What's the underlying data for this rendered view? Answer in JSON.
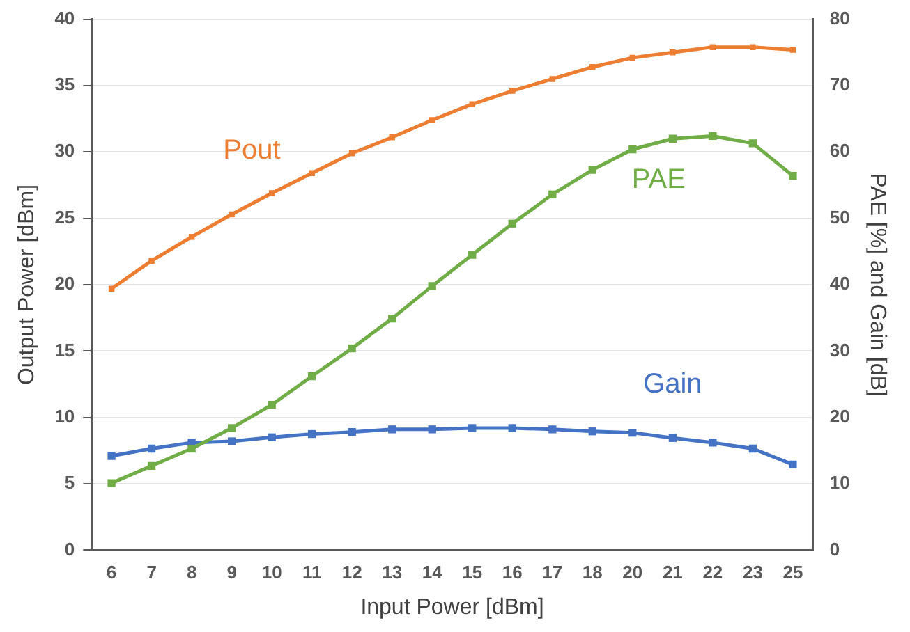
{
  "chart_data": {
    "type": "line",
    "xlabel": "Input Power [dBm]",
    "ylabel": "Output Power [dBm]",
    "y2label": "PAE [%] and Gain [dB]",
    "categories": [
      "6",
      "7",
      "8",
      "9",
      "10",
      "11",
      "12",
      "13",
      "14",
      "15",
      "16",
      "17",
      "18",
      "20",
      "21",
      "22",
      "23",
      "25"
    ],
    "series": [
      {
        "name": "Pout",
        "color": "#ed7d31",
        "values": [
          19.7,
          21.8,
          23.6,
          25.3,
          26.9,
          28.4,
          29.9,
          31.1,
          32.4,
          33.6,
          34.6,
          35.5,
          36.4,
          37.1,
          37.5,
          37.9,
          37.9,
          37.7
        ]
      },
      {
        "name": "PAE",
        "color": "#70ad47",
        "axis": "y2",
        "values": [
          10.1,
          12.7,
          15.3,
          18.4,
          21.9,
          26.2,
          30.4,
          34.9,
          39.8,
          44.5,
          49.2,
          53.6,
          57.3,
          60.4,
          62.0,
          62.4,
          61.3,
          56.4
        ]
      },
      {
        "name": "Gain",
        "color": "#4472c4",
        "axis": "y2",
        "values": [
          14.2,
          15.3,
          16.2,
          16.4,
          17.0,
          17.5,
          17.8,
          18.2,
          18.2,
          18.4,
          18.4,
          18.2,
          17.9,
          17.7,
          16.9,
          16.2,
          15.3,
          12.9
        ]
      }
    ],
    "ylim": [
      0,
      40
    ],
    "yticks": [
      0,
      5,
      10,
      15,
      20,
      25,
      30,
      35,
      40
    ],
    "y2lim": [
      0,
      80
    ],
    "y2ticks": [
      0,
      10,
      20,
      30,
      40,
      50,
      60,
      70,
      80
    ],
    "grid": "y",
    "legend": false,
    "marker": "square",
    "line_style": "solid"
  }
}
